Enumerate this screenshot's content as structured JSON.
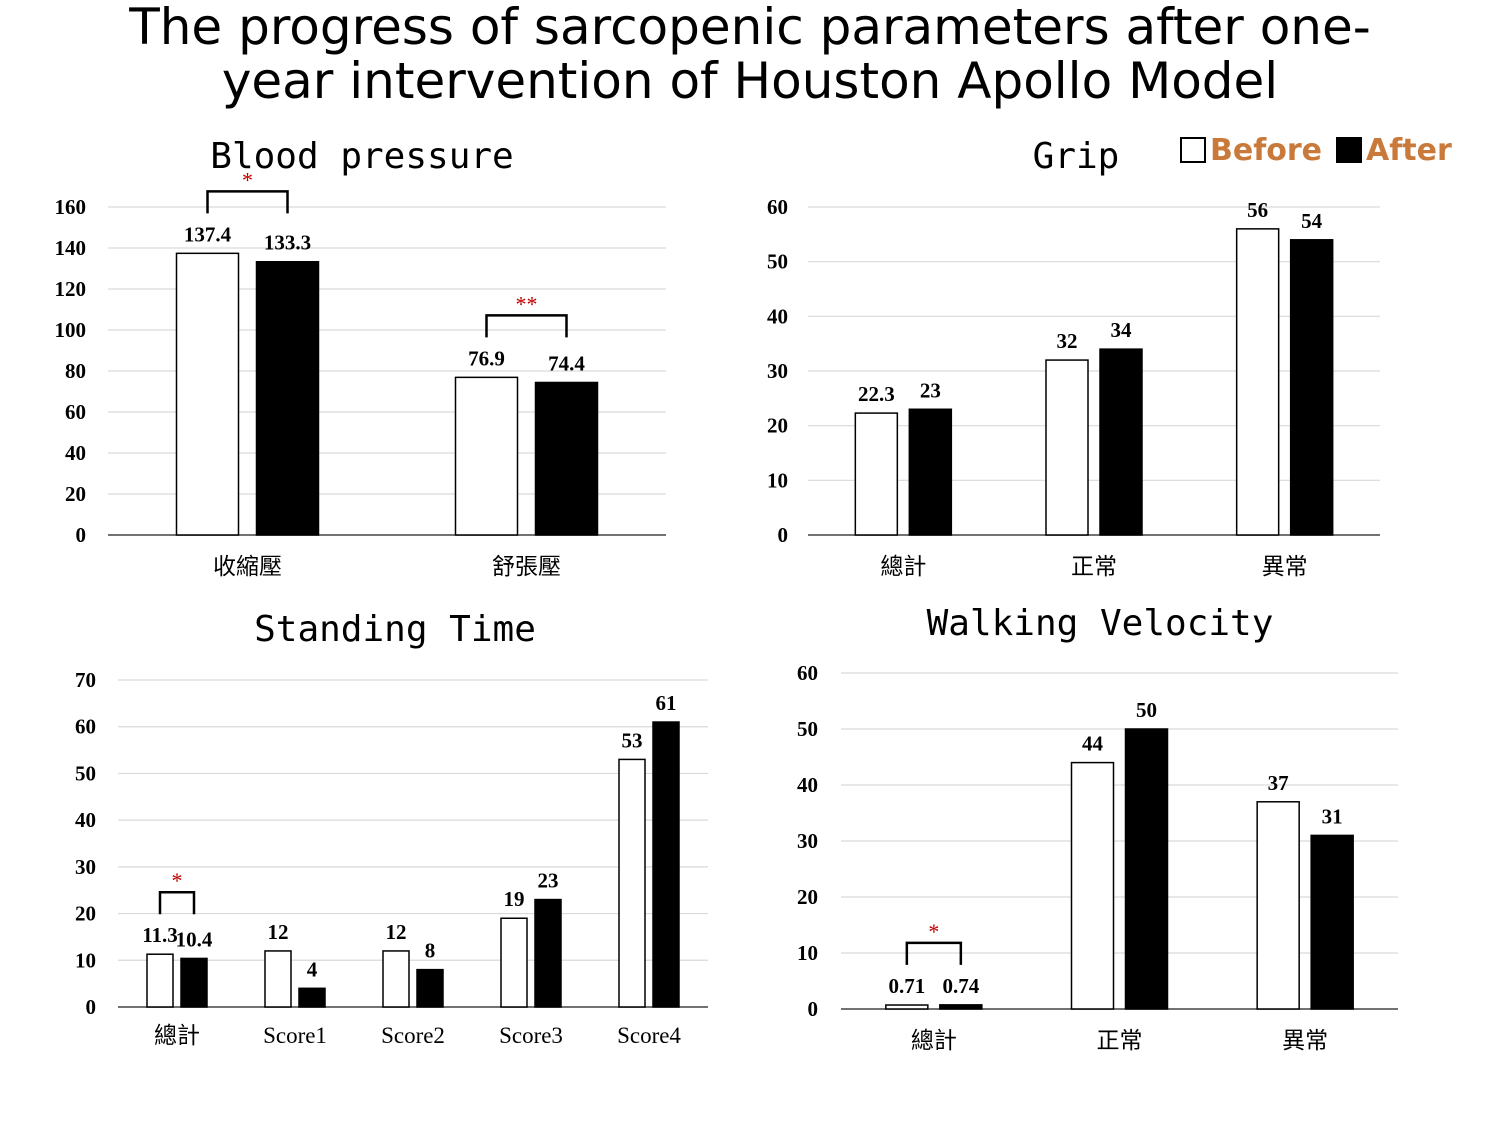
{
  "title_line1": "The progress of sarcopenic parameters after one-",
  "title_line2": "year intervention of Houston Apollo Model",
  "legend": {
    "before_label": "Before",
    "after_label": "After",
    "before_color": "#ffffff",
    "after_color": "#000000",
    "label_color": "#c97a3a"
  },
  "chart_data": [
    {
      "type": "bar",
      "title": "Blood pressure",
      "categories": [
        "收縮壓",
        "舒張壓"
      ],
      "series": [
        {
          "name": "Before",
          "values": [
            137.4,
            76.9
          ],
          "labels": [
            "137.4",
            "76.9"
          ]
        },
        {
          "name": "After",
          "values": [
            133.3,
            74.4
          ],
          "labels": [
            "133.3",
            "74.4"
          ]
        }
      ],
      "ylim": [
        0,
        160
      ],
      "yticks": [
        0,
        20,
        40,
        60,
        80,
        100,
        120,
        140,
        160
      ],
      "grid": true,
      "annotations": [
        {
          "category_index": 0,
          "text": "*"
        },
        {
          "category_index": 1,
          "text": "**"
        }
      ]
    },
    {
      "type": "bar",
      "title": "Grip",
      "categories": [
        "總計",
        "正常",
        "異常"
      ],
      "series": [
        {
          "name": "Before",
          "values": [
            22.3,
            32,
            56
          ],
          "labels": [
            "22.3",
            "32",
            "56"
          ]
        },
        {
          "name": "After",
          "values": [
            23,
            34,
            54
          ],
          "labels": [
            "23",
            "34",
            "54"
          ]
        }
      ],
      "ylim": [
        0,
        60
      ],
      "yticks": [
        0,
        10,
        20,
        30,
        40,
        50,
        60
      ],
      "grid": true,
      "annotations": []
    },
    {
      "type": "bar",
      "title": "Standing Time",
      "categories": [
        "總計",
        "Score1",
        "Score2",
        "Score3",
        "Score4"
      ],
      "series": [
        {
          "name": "Before",
          "values": [
            11.3,
            12,
            12,
            19,
            53
          ],
          "labels": [
            "11.3",
            "12",
            "12",
            "19",
            "53"
          ]
        },
        {
          "name": "After",
          "values": [
            10.4,
            4,
            8,
            23,
            61
          ],
          "labels": [
            "10.4",
            "4",
            "8",
            "23",
            "61"
          ]
        }
      ],
      "ylim": [
        0,
        70
      ],
      "yticks": [
        0,
        10,
        20,
        30,
        40,
        50,
        60,
        70
      ],
      "grid": true,
      "annotations": [
        {
          "category_index": 0,
          "text": "*"
        }
      ]
    },
    {
      "type": "bar",
      "title": "Walking Velocity",
      "categories": [
        "總計",
        "正常",
        "異常"
      ],
      "series": [
        {
          "name": "Before",
          "values": [
            0.71,
            44,
            37
          ],
          "labels": [
            "0.71",
            "44",
            "37"
          ]
        },
        {
          "name": "After",
          "values": [
            0.74,
            50,
            31
          ],
          "labels": [
            "0.74",
            "50",
            "31"
          ]
        }
      ],
      "ylim": [
        0,
        60
      ],
      "yticks": [
        0,
        10,
        20,
        30,
        40,
        50,
        60
      ],
      "grid": true,
      "annotations": [
        {
          "category_index": 0,
          "text": "*"
        }
      ]
    }
  ]
}
